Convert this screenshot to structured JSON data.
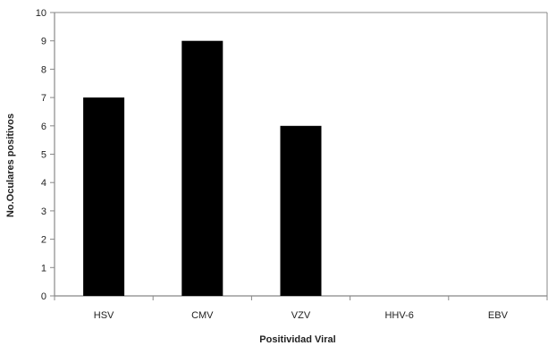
{
  "chart_data": {
    "type": "bar",
    "title": "",
    "xlabel": "Positividad Viral",
    "ylabel": "No.Oculares positivos",
    "categories": [
      "HSV",
      "CMV",
      "VZV",
      "HHV-6",
      "EBV"
    ],
    "values": [
      7,
      9,
      6,
      0,
      0
    ],
    "ylim": [
      0,
      10
    ],
    "yticks": [
      "0",
      "1",
      "2",
      "3",
      "4",
      "5",
      "6",
      "7",
      "8",
      "9",
      "10"
    ],
    "grid": false,
    "legend": "none",
    "bar_color": "#000000",
    "axis_color": "#888888"
  }
}
